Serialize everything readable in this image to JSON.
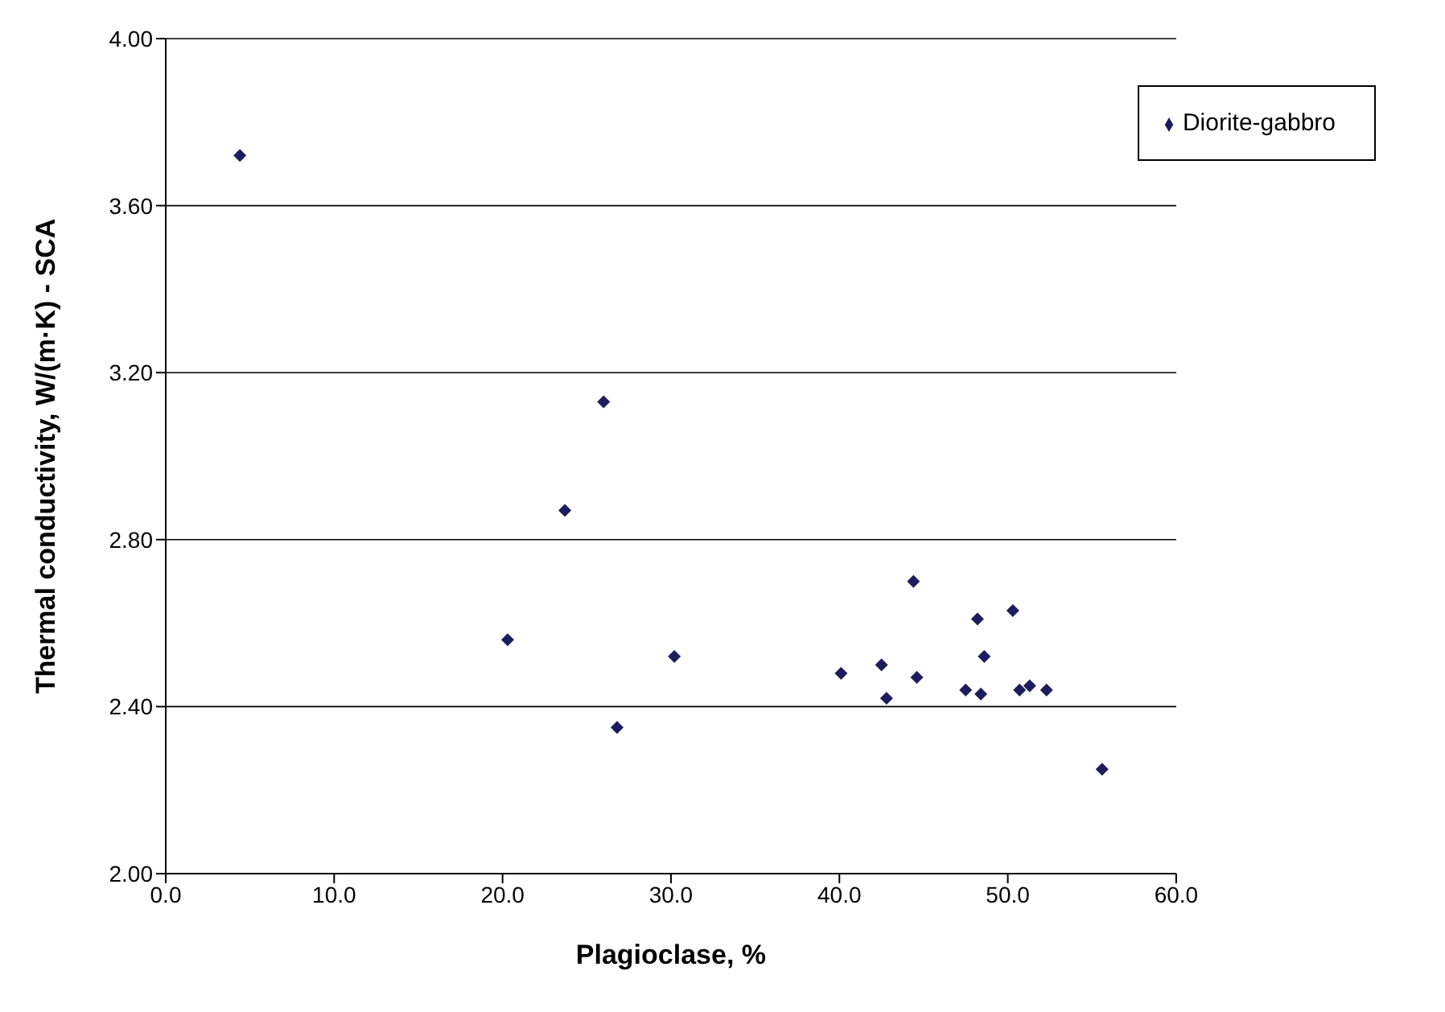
{
  "chart_data": {
    "type": "scatter",
    "xlabel": "Plagioclase, %",
    "ylabel": "Thermal conductivity, W/(m·K) - SCA",
    "xlim": [
      0,
      60
    ],
    "xticks": [
      {
        "value": 0,
        "label": "0.0"
      },
      {
        "value": 10,
        "label": "10.0"
      },
      {
        "value": 20,
        "label": "20.0"
      },
      {
        "value": 30,
        "label": "30.0"
      },
      {
        "value": 40,
        "label": "40.0"
      },
      {
        "value": 50,
        "label": "50.0"
      },
      {
        "value": 60,
        "label": "60.0"
      }
    ],
    "ylim": [
      2,
      4
    ],
    "yticks": [
      {
        "value": 2,
        "label": "2.00"
      },
      {
        "value": 2.4,
        "label": "2.40"
      },
      {
        "value": 2.8,
        "label": "2.80"
      },
      {
        "value": 3.2,
        "label": "3.20"
      },
      {
        "value": 3.6,
        "label": "3.60"
      },
      {
        "value": 4,
        "label": "4.00"
      }
    ],
    "grid": "y",
    "legend": "top right",
    "marker": "diamond",
    "series": [
      {
        "name": "Diorite-gabbro",
        "color": "#1c1c5e",
        "x": [
          4.4,
          20.3,
          23.7,
          26.0,
          26.8,
          30.2,
          40.1,
          42.5,
          42.8,
          44.4,
          44.6,
          47.5,
          48.2,
          48.4,
          48.6,
          50.3,
          50.7,
          51.3,
          52.3,
          55.6
        ],
        "values": [
          3.72,
          2.56,
          2.87,
          3.13,
          2.35,
          2.52,
          2.48,
          2.5,
          2.42,
          2.7,
          2.47,
          2.44,
          2.61,
          2.43,
          2.52,
          2.63,
          2.44,
          2.45,
          2.44,
          2.25
        ]
      }
    ]
  }
}
